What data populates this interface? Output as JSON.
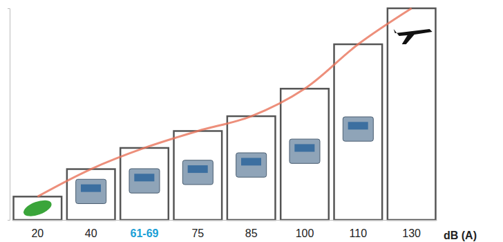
{
  "chart_data": {
    "type": "bar",
    "categories": [
      "20",
      "40",
      "61-69",
      "75",
      "85",
      "100",
      "110",
      "130"
    ],
    "values": [
      11,
      24,
      34,
      42,
      49,
      62,
      83,
      100
    ],
    "x_label": "dB (A)",
    "color": "#555555",
    "ylim": [
      0,
      100
    ],
    "yticks": [
      0,
      100
    ],
    "tick_labels": "x",
    "grid": false
  }
}
